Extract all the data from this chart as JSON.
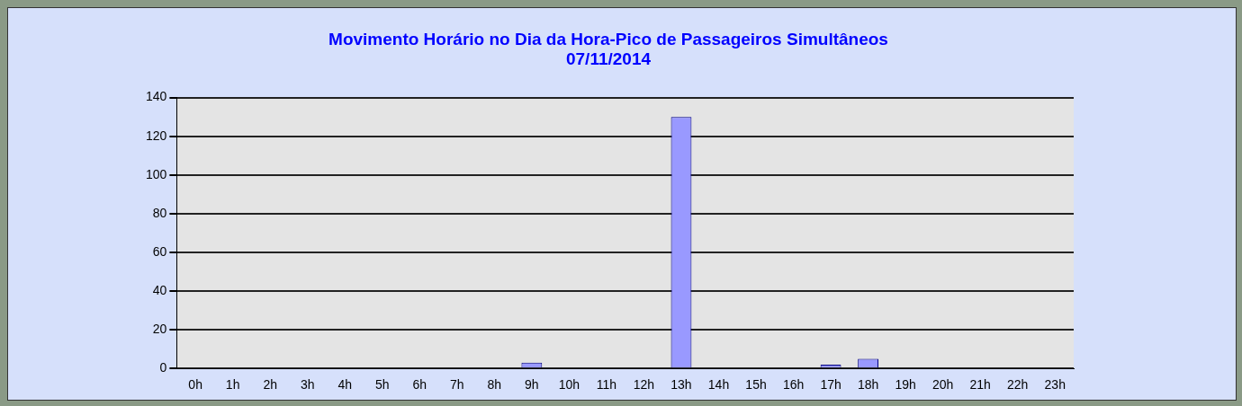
{
  "chart_data": {
    "type": "bar",
    "title": [
      "Movimento Horário no Dia da Hora-Pico de Passageiros Simultâneos",
      "07/11/2014"
    ],
    "categories": [
      "0h",
      "1h",
      "2h",
      "3h",
      "4h",
      "5h",
      "6h",
      "7h",
      "8h",
      "9h",
      "10h",
      "11h",
      "12h",
      "13h",
      "14h",
      "15h",
      "16h",
      "17h",
      "18h",
      "19h",
      "20h",
      "21h",
      "22h",
      "23h"
    ],
    "values": [
      0,
      0,
      0,
      0,
      0,
      0,
      0,
      0,
      0,
      3,
      0,
      0,
      0,
      130,
      0,
      0,
      0,
      2,
      5,
      0,
      0,
      0,
      0,
      0
    ],
    "color": "#9999ff",
    "ylim": [
      0,
      140
    ],
    "yticks": [
      0,
      20,
      40,
      60,
      80,
      100,
      120,
      140
    ],
    "grid": "y",
    "legend": false
  }
}
